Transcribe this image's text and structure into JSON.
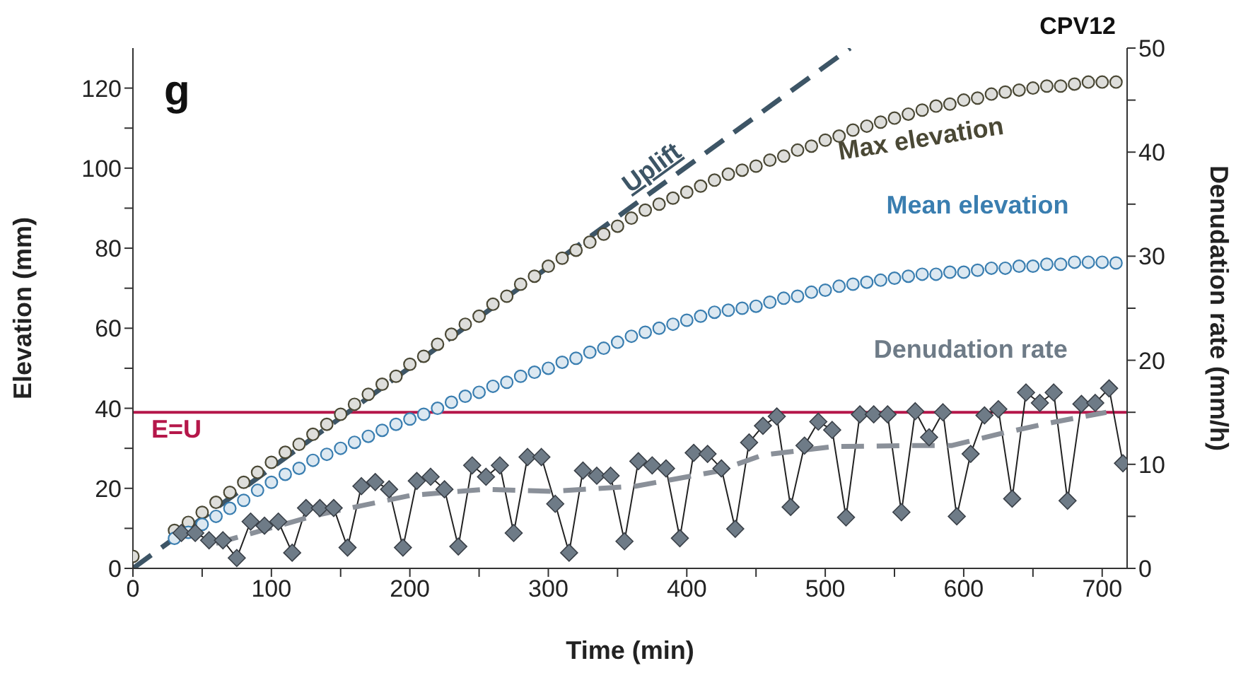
{
  "chart_data": {
    "type": "scatter",
    "title": "CPV12",
    "xlabel": "Time (min)",
    "ylabel": "Elevation (mm)",
    "y2label": "Denudation rate (mm/h)",
    "annotations": [
      "g"
    ],
    "xlim": [
      0,
      718
    ],
    "xticks": [
      0,
      {
        "value": 50,
        "label": null
      },
      100,
      {
        "value": 150,
        "label": null
      },
      200,
      {
        "value": 250,
        "label": null
      },
      300,
      {
        "value": 350,
        "label": null
      },
      400,
      {
        "value": 450,
        "label": null
      },
      500,
      {
        "value": 550,
        "label": null
      },
      600,
      {
        "value": 650,
        "label": null
      },
      700
    ],
    "ylim": [
      0,
      130
    ],
    "yticks": [
      0,
      {
        "value": 10,
        "label": null
      },
      20,
      {
        "value": 30,
        "label": null
      },
      40,
      {
        "value": 50,
        "label": null
      },
      60,
      {
        "value": 70,
        "label": null
      },
      80,
      {
        "value": 90,
        "label": null
      },
      100,
      {
        "value": 110,
        "label": null
      },
      120
    ],
    "y2lim": [
      0,
      50
    ],
    "y2ticks": [
      0,
      {
        "value": 5,
        "label": null
      },
      10,
      {
        "value": 15,
        "label": null
      },
      20,
      {
        "value": 25,
        "label": null
      },
      30,
      {
        "value": 35,
        "label": null
      },
      40,
      {
        "value": 45,
        "label": null
      },
      50
    ],
    "ref_lines": [
      {
        "axis": "y2",
        "value": 15,
        "label": "E=U",
        "color": "#b5174a"
      }
    ],
    "series": [
      {
        "name": "Uplift",
        "type": "line",
        "color": "#3d5566",
        "line_style": "dashed",
        "marker": "none",
        "x": [
          0,
          518
        ],
        "values": [
          0,
          130
        ]
      },
      {
        "name": "Max elevation",
        "color": "#4a4835",
        "marker": "circle",
        "x": [
          0,
          30,
          40,
          50,
          60,
          70,
          80,
          90,
          100,
          110,
          120,
          130,
          140,
          150,
          160,
          170,
          180,
          190,
          200,
          210,
          220,
          230,
          240,
          250,
          260,
          270,
          280,
          290,
          300,
          310,
          320,
          330,
          340,
          350,
          360,
          370,
          380,
          390,
          400,
          410,
          420,
          430,
          440,
          450,
          460,
          470,
          480,
          490,
          500,
          510,
          520,
          530,
          540,
          550,
          560,
          570,
          580,
          590,
          600,
          610,
          620,
          630,
          640,
          650,
          660,
          670,
          680,
          690,
          700,
          710
        ],
        "values": [
          3,
          9.5,
          11.5,
          14,
          16.5,
          19,
          21.5,
          24,
          26.5,
          29,
          31,
          33.5,
          36,
          38.5,
          41,
          43.5,
          46,
          48,
          51,
          53,
          56,
          58.5,
          61,
          63,
          66,
          68,
          71,
          73,
          75.5,
          77.5,
          79.5,
          81.5,
          83.5,
          85.5,
          87.5,
          89.5,
          91,
          92.5,
          94,
          95.5,
          97,
          98.5,
          99.5,
          100.5,
          102,
          103,
          104.5,
          105.5,
          107,
          108,
          109.5,
          110.5,
          111.5,
          112.5,
          113.5,
          114.5,
          115.5,
          116,
          117,
          117.5,
          118.5,
          119,
          119.5,
          120,
          120.5,
          120.5,
          121,
          121.5,
          121.5,
          121.5
        ]
      },
      {
        "name": "Mean elevation",
        "color": "#3a7eb0",
        "marker": "circle",
        "x": [
          30,
          40,
          50,
          60,
          70,
          80,
          90,
          100,
          110,
          120,
          130,
          140,
          150,
          160,
          170,
          180,
          190,
          200,
          210,
          220,
          230,
          240,
          250,
          260,
          270,
          280,
          290,
          300,
          310,
          320,
          330,
          340,
          350,
          360,
          370,
          380,
          390,
          400,
          410,
          420,
          430,
          440,
          450,
          460,
          470,
          480,
          490,
          500,
          510,
          520,
          530,
          540,
          550,
          560,
          570,
          580,
          590,
          600,
          610,
          620,
          630,
          640,
          650,
          660,
          670,
          680,
          690,
          700,
          710
        ],
        "values": [
          7.5,
          9,
          11,
          13,
          15,
          17,
          19.5,
          21.5,
          23.5,
          25,
          27,
          28.5,
          30,
          31.5,
          33,
          34.5,
          36,
          37.3,
          38.5,
          40,
          41.5,
          43,
          44,
          45.5,
          46.5,
          48,
          49,
          50,
          51.5,
          52.5,
          54,
          55,
          56.5,
          58,
          59,
          60,
          61,
          62,
          63,
          64,
          64.5,
          65,
          65.5,
          66.5,
          67.5,
          68,
          69,
          69.5,
          70.5,
          71,
          71.5,
          72,
          72.5,
          73,
          73.5,
          73.5,
          74,
          74,
          74.5,
          75,
          75,
          75.5,
          75.5,
          76,
          76,
          76.5,
          76.5,
          76.5,
          76.3
        ]
      },
      {
        "name": "Denudation rate",
        "type": "line",
        "axis": "y2",
        "color": "#6e7b87",
        "marker": "diamond",
        "line_style": "solid",
        "x": [
          35,
          45,
          55,
          65,
          75,
          85,
          95,
          105,
          115,
          125,
          135,
          145,
          155,
          165,
          175,
          185,
          195,
          205,
          215,
          225,
          235,
          245,
          255,
          265,
          275,
          285,
          295,
          305,
          315,
          325,
          335,
          345,
          355,
          365,
          375,
          385,
          395,
          405,
          415,
          425,
          435,
          445,
          455,
          465,
          475,
          485,
          495,
          505,
          515,
          525,
          535,
          545,
          555,
          565,
          575,
          585,
          595,
          605,
          615,
          625,
          635,
          645,
          655,
          665,
          675,
          685,
          695,
          705,
          715
        ],
        "values": [
          3.4,
          3.4,
          2.7,
          2.7,
          1.0,
          4.5,
          4.1,
          4.5,
          1.5,
          5.8,
          5.8,
          5.8,
          2.0,
          7.9,
          8.3,
          7.6,
          2.0,
          8.4,
          8.8,
          7.6,
          2.1,
          9.9,
          8.8,
          9.9,
          3.4,
          10.7,
          10.7,
          6.2,
          1.5,
          9.4,
          8.9,
          8.9,
          2.6,
          10.3,
          9.9,
          9.6,
          2.9,
          11.1,
          11.0,
          9.6,
          3.8,
          12.1,
          13.7,
          14.6,
          5.9,
          11.8,
          14.1,
          13.3,
          4.9,
          14.8,
          14.8,
          14.8,
          5.4,
          15.1,
          12.6,
          15.0,
          5.0,
          11.0,
          14.7,
          15.3,
          6.7,
          16.9,
          15.9,
          16.9,
          6.5,
          15.8,
          15.9,
          17.3,
          10.1
        ]
      },
      {
        "type": "line",
        "axis": "y2",
        "color": "#8a9099",
        "line_style": "dashed",
        "marker": "none",
        "x": [
          60,
          132,
          200,
          254,
          302,
          363,
          421,
          455,
          506,
          557,
          591,
          625,
          659,
          703
        ],
        "values": [
          2.4,
          5.1,
          7.0,
          7.6,
          7.4,
          7.9,
          9.3,
          10.9,
          11.7,
          11.8,
          11.8,
          12.9,
          13.9,
          15.0
        ]
      }
    ]
  }
}
